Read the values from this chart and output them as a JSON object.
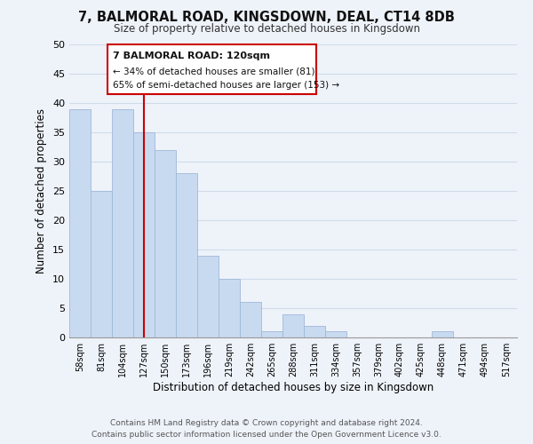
{
  "title": "7, BALMORAL ROAD, KINGSDOWN, DEAL, CT14 8DB",
  "subtitle": "Size of property relative to detached houses in Kingsdown",
  "xlabel": "Distribution of detached houses by size in Kingsdown",
  "ylabel": "Number of detached properties",
  "bin_labels": [
    "58sqm",
    "81sqm",
    "104sqm",
    "127sqm",
    "150sqm",
    "173sqm",
    "196sqm",
    "219sqm",
    "242sqm",
    "265sqm",
    "288sqm",
    "311sqm",
    "334sqm",
    "357sqm",
    "379sqm",
    "402sqm",
    "425sqm",
    "448sqm",
    "471sqm",
    "494sqm",
    "517sqm"
  ],
  "bar_heights": [
    39,
    25,
    39,
    35,
    32,
    28,
    14,
    10,
    6,
    1,
    4,
    2,
    1,
    0,
    0,
    0,
    0,
    1,
    0,
    0,
    0
  ],
  "bar_color": "#c8daf0",
  "bar_edge_color": "#a0b8d8",
  "vline_x_index": 3,
  "vline_color": "#cc0000",
  "ylim": [
    0,
    50
  ],
  "yticks": [
    0,
    5,
    10,
    15,
    20,
    25,
    30,
    35,
    40,
    45,
    50
  ],
  "annotation_title": "7 BALMORAL ROAD: 120sqm",
  "annotation_line1": "← 34% of detached houses are smaller (81)",
  "annotation_line2": "65% of semi-detached houses are larger (153) →",
  "annotation_box_color": "#ffffff",
  "annotation_box_edge": "#cc0000",
  "footer_line1": "Contains HM Land Registry data © Crown copyright and database right 2024.",
  "footer_line2": "Contains public sector information licensed under the Open Government Licence v3.0.",
  "grid_color": "#d0dce8",
  "background_color": "#eef3fa"
}
